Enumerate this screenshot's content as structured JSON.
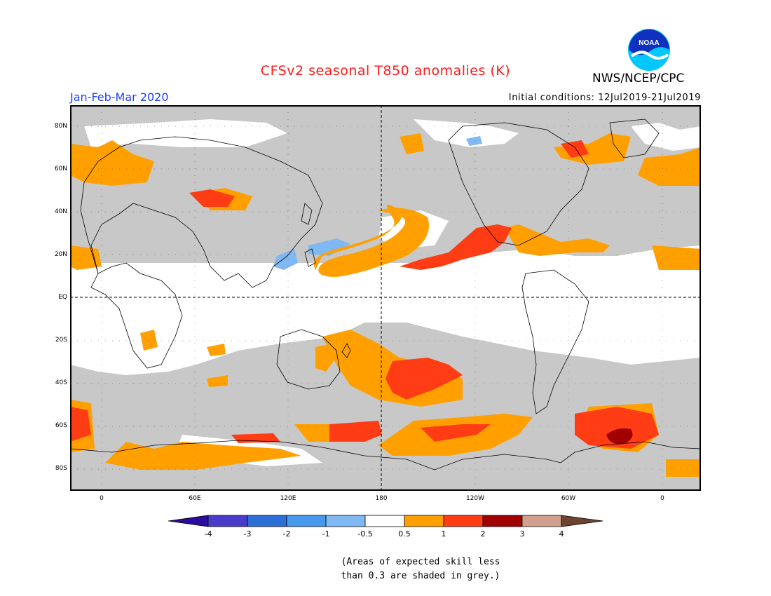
{
  "header": {
    "title": "CFSv2 seasonal T850 anomalies (K)",
    "agency": "NWS/NCEP/CPC",
    "season": "Jan-Feb-Mar 2020",
    "initial_conditions": "Initial conditions: 12Jul2019-21Jul2019",
    "logo_text": "NOAA"
  },
  "map": {
    "lat_labels": [
      "80N",
      "60N",
      "40N",
      "20N",
      "EQ",
      "20S",
      "40S",
      "60S",
      "80S"
    ],
    "lon_labels": [
      "0",
      "60E",
      "120E",
      "180",
      "120W",
      "60W",
      "0"
    ],
    "colors": {
      "grey_skill": "#c8c8c8",
      "coast": "#000000"
    }
  },
  "colorbar": {
    "tick_labels": [
      "-4",
      "-3",
      "-2",
      "-1",
      "-0.5",
      "0.5",
      "1",
      "2",
      "3",
      "4"
    ],
    "colors": [
      "#2a0d9e",
      "#4a3ccb",
      "#2d6fd6",
      "#4799ee",
      "#7fb8f2",
      "#ffffff",
      "#ffa000",
      "#ff3c14",
      "#a00000",
      "#d0a08c",
      "#6e4430"
    ]
  },
  "footnote": {
    "line1": "(Areas of expected skill less",
    "line2": "than 0.3 are shaded in grey.)"
  }
}
